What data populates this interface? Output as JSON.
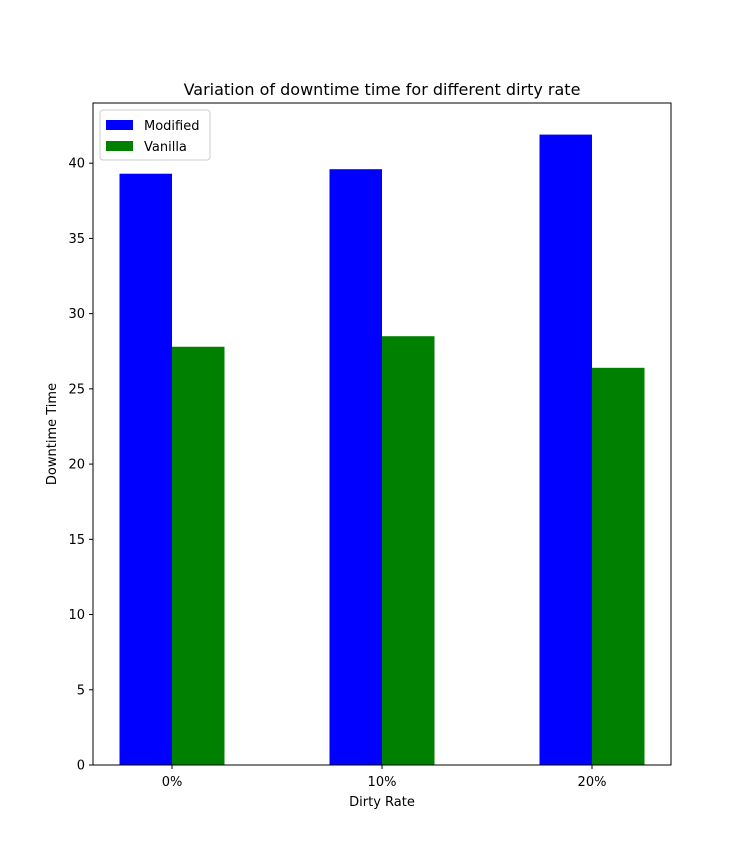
{
  "chart_data": {
    "type": "bar",
    "title": "Variation of downtime time for different dirty rate",
    "xlabel": "Dirty Rate",
    "ylabel": "Downtime Time",
    "categories": [
      "0%",
      "10%",
      "20%"
    ],
    "series": [
      {
        "name": "Modified",
        "color": "#0000ff",
        "values": [
          39.3,
          39.6,
          41.9
        ]
      },
      {
        "name": "Vanilla",
        "color": "#008000",
        "values": [
          27.8,
          28.5,
          26.4
        ]
      }
    ],
    "ylim": [
      0,
      44.0
    ],
    "yticks": [
      0,
      5,
      10,
      15,
      20,
      25,
      30,
      35,
      40
    ],
    "grid": false,
    "legend_position": "top-left"
  }
}
